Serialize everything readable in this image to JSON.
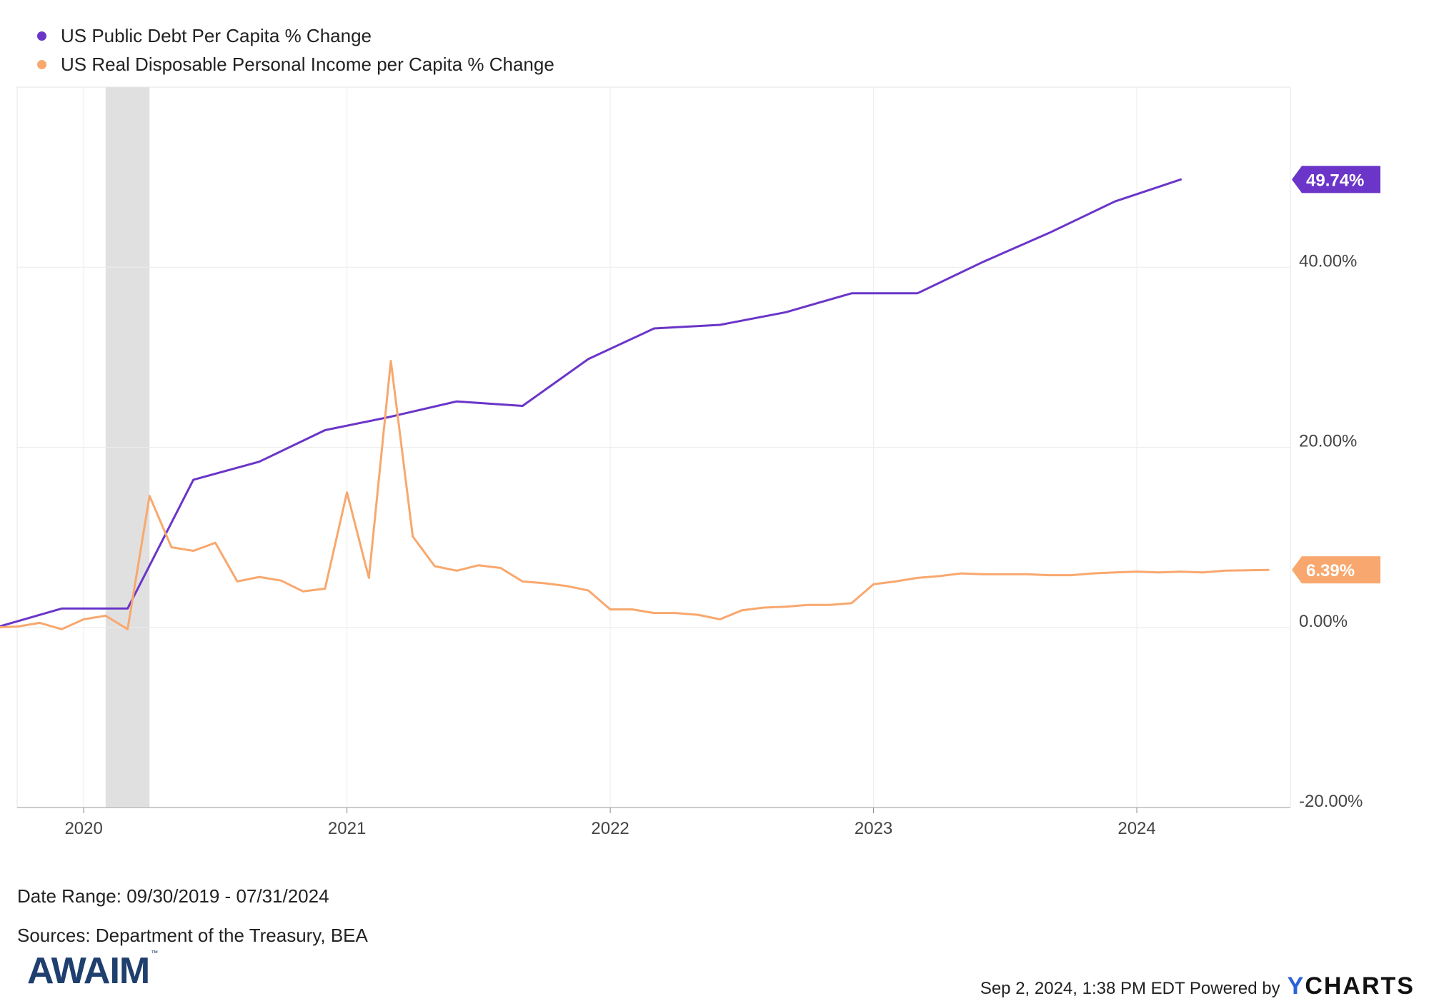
{
  "chart_data": {
    "type": "line",
    "x_range": [
      "2019-09-30",
      "2024-07-31"
    ],
    "xticks": [
      "2020",
      "2021",
      "2022",
      "2023",
      "2024"
    ],
    "yticks": [
      "40.00%",
      "20.00%",
      "0.00%",
      "-20.00%"
    ],
    "ylim": [
      -20,
      60
    ],
    "grid": true,
    "legend_position": "top-left",
    "recession_shading": {
      "start": "2020-02",
      "end": "2020-04"
    },
    "series": [
      {
        "name": "US Public Debt Per Capita % Change",
        "color": "#6a35c8",
        "last_label": "49.74%",
        "points": [
          [
            "2019-09",
            0
          ],
          [
            "2019-12",
            2.1
          ],
          [
            "2020-03",
            2.1
          ],
          [
            "2020-06",
            16.4
          ],
          [
            "2020-09",
            18.4
          ],
          [
            "2020-12",
            21.9
          ],
          [
            "2021-03",
            23.4
          ],
          [
            "2021-06",
            25.1
          ],
          [
            "2021-09",
            24.6
          ],
          [
            "2021-12",
            29.8
          ],
          [
            "2022-03",
            33.2
          ],
          [
            "2022-06",
            33.6
          ],
          [
            "2022-09",
            35.0
          ],
          [
            "2022-12",
            37.1
          ],
          [
            "2023-03",
            37.1
          ],
          [
            "2023-06",
            40.6
          ],
          [
            "2023-09",
            43.8
          ],
          [
            "2023-12",
            47.3
          ],
          [
            "2024-03",
            49.74
          ]
        ]
      },
      {
        "name": "US Real Disposable Personal Income per Capita % Change",
        "color": "#f8a86e",
        "last_label": "6.39%",
        "points": [
          [
            "2019-09",
            0
          ],
          [
            "2019-10",
            0.1
          ],
          [
            "2019-11",
            0.5
          ],
          [
            "2019-12",
            -0.2
          ],
          [
            "2020-01",
            0.9
          ],
          [
            "2020-02",
            1.3
          ],
          [
            "2020-03",
            -0.2
          ],
          [
            "2020-04",
            14.6
          ],
          [
            "2020-05",
            8.9
          ],
          [
            "2020-06",
            8.5
          ],
          [
            "2020-07",
            9.4
          ],
          [
            "2020-08",
            5.1
          ],
          [
            "2020-09",
            5.6
          ],
          [
            "2020-10",
            5.2
          ],
          [
            "2020-11",
            4.0
          ],
          [
            "2020-12",
            4.3
          ],
          [
            "2021-01",
            15.0
          ],
          [
            "2021-02",
            5.5
          ],
          [
            "2021-03",
            29.6
          ],
          [
            "2021-04",
            10.1
          ],
          [
            "2021-05",
            6.8
          ],
          [
            "2021-06",
            6.3
          ],
          [
            "2021-07",
            6.9
          ],
          [
            "2021-08",
            6.6
          ],
          [
            "2021-09",
            5.1
          ],
          [
            "2021-10",
            4.9
          ],
          [
            "2021-11",
            4.6
          ],
          [
            "2021-12",
            4.1
          ],
          [
            "2022-01",
            2.0
          ],
          [
            "2022-02",
            2.0
          ],
          [
            "2022-03",
            1.6
          ],
          [
            "2022-04",
            1.6
          ],
          [
            "2022-05",
            1.4
          ],
          [
            "2022-06",
            0.9
          ],
          [
            "2022-07",
            1.9
          ],
          [
            "2022-08",
            2.2
          ],
          [
            "2022-09",
            2.3
          ],
          [
            "2022-10",
            2.5
          ],
          [
            "2022-11",
            2.5
          ],
          [
            "2022-12",
            2.7
          ],
          [
            "2023-01",
            4.8
          ],
          [
            "2023-02",
            5.1
          ],
          [
            "2023-03",
            5.5
          ],
          [
            "2023-04",
            5.7
          ],
          [
            "2023-05",
            6.0
          ],
          [
            "2023-06",
            5.9
          ],
          [
            "2023-07",
            5.9
          ],
          [
            "2023-08",
            5.9
          ],
          [
            "2023-09",
            5.8
          ],
          [
            "2023-10",
            5.8
          ],
          [
            "2023-11",
            6.0
          ],
          [
            "2023-12",
            6.1
          ],
          [
            "2024-01",
            6.2
          ],
          [
            "2024-02",
            6.1
          ],
          [
            "2024-03",
            6.2
          ],
          [
            "2024-04",
            6.1
          ],
          [
            "2024-05",
            6.3
          ],
          [
            "2024-06",
            6.35
          ],
          [
            "2024-07",
            6.39
          ]
        ]
      }
    ]
  },
  "footer": {
    "date_range": "Date Range: 09/30/2019 - 07/31/2024",
    "sources": "Sources: Department of the Treasury, BEA",
    "logo_text": "AWAIM",
    "timestamp": "Sep 2, 2024, 1:38 PM EDT Powered by",
    "brand": "CHARTS",
    "brand_initial": "Y"
  }
}
